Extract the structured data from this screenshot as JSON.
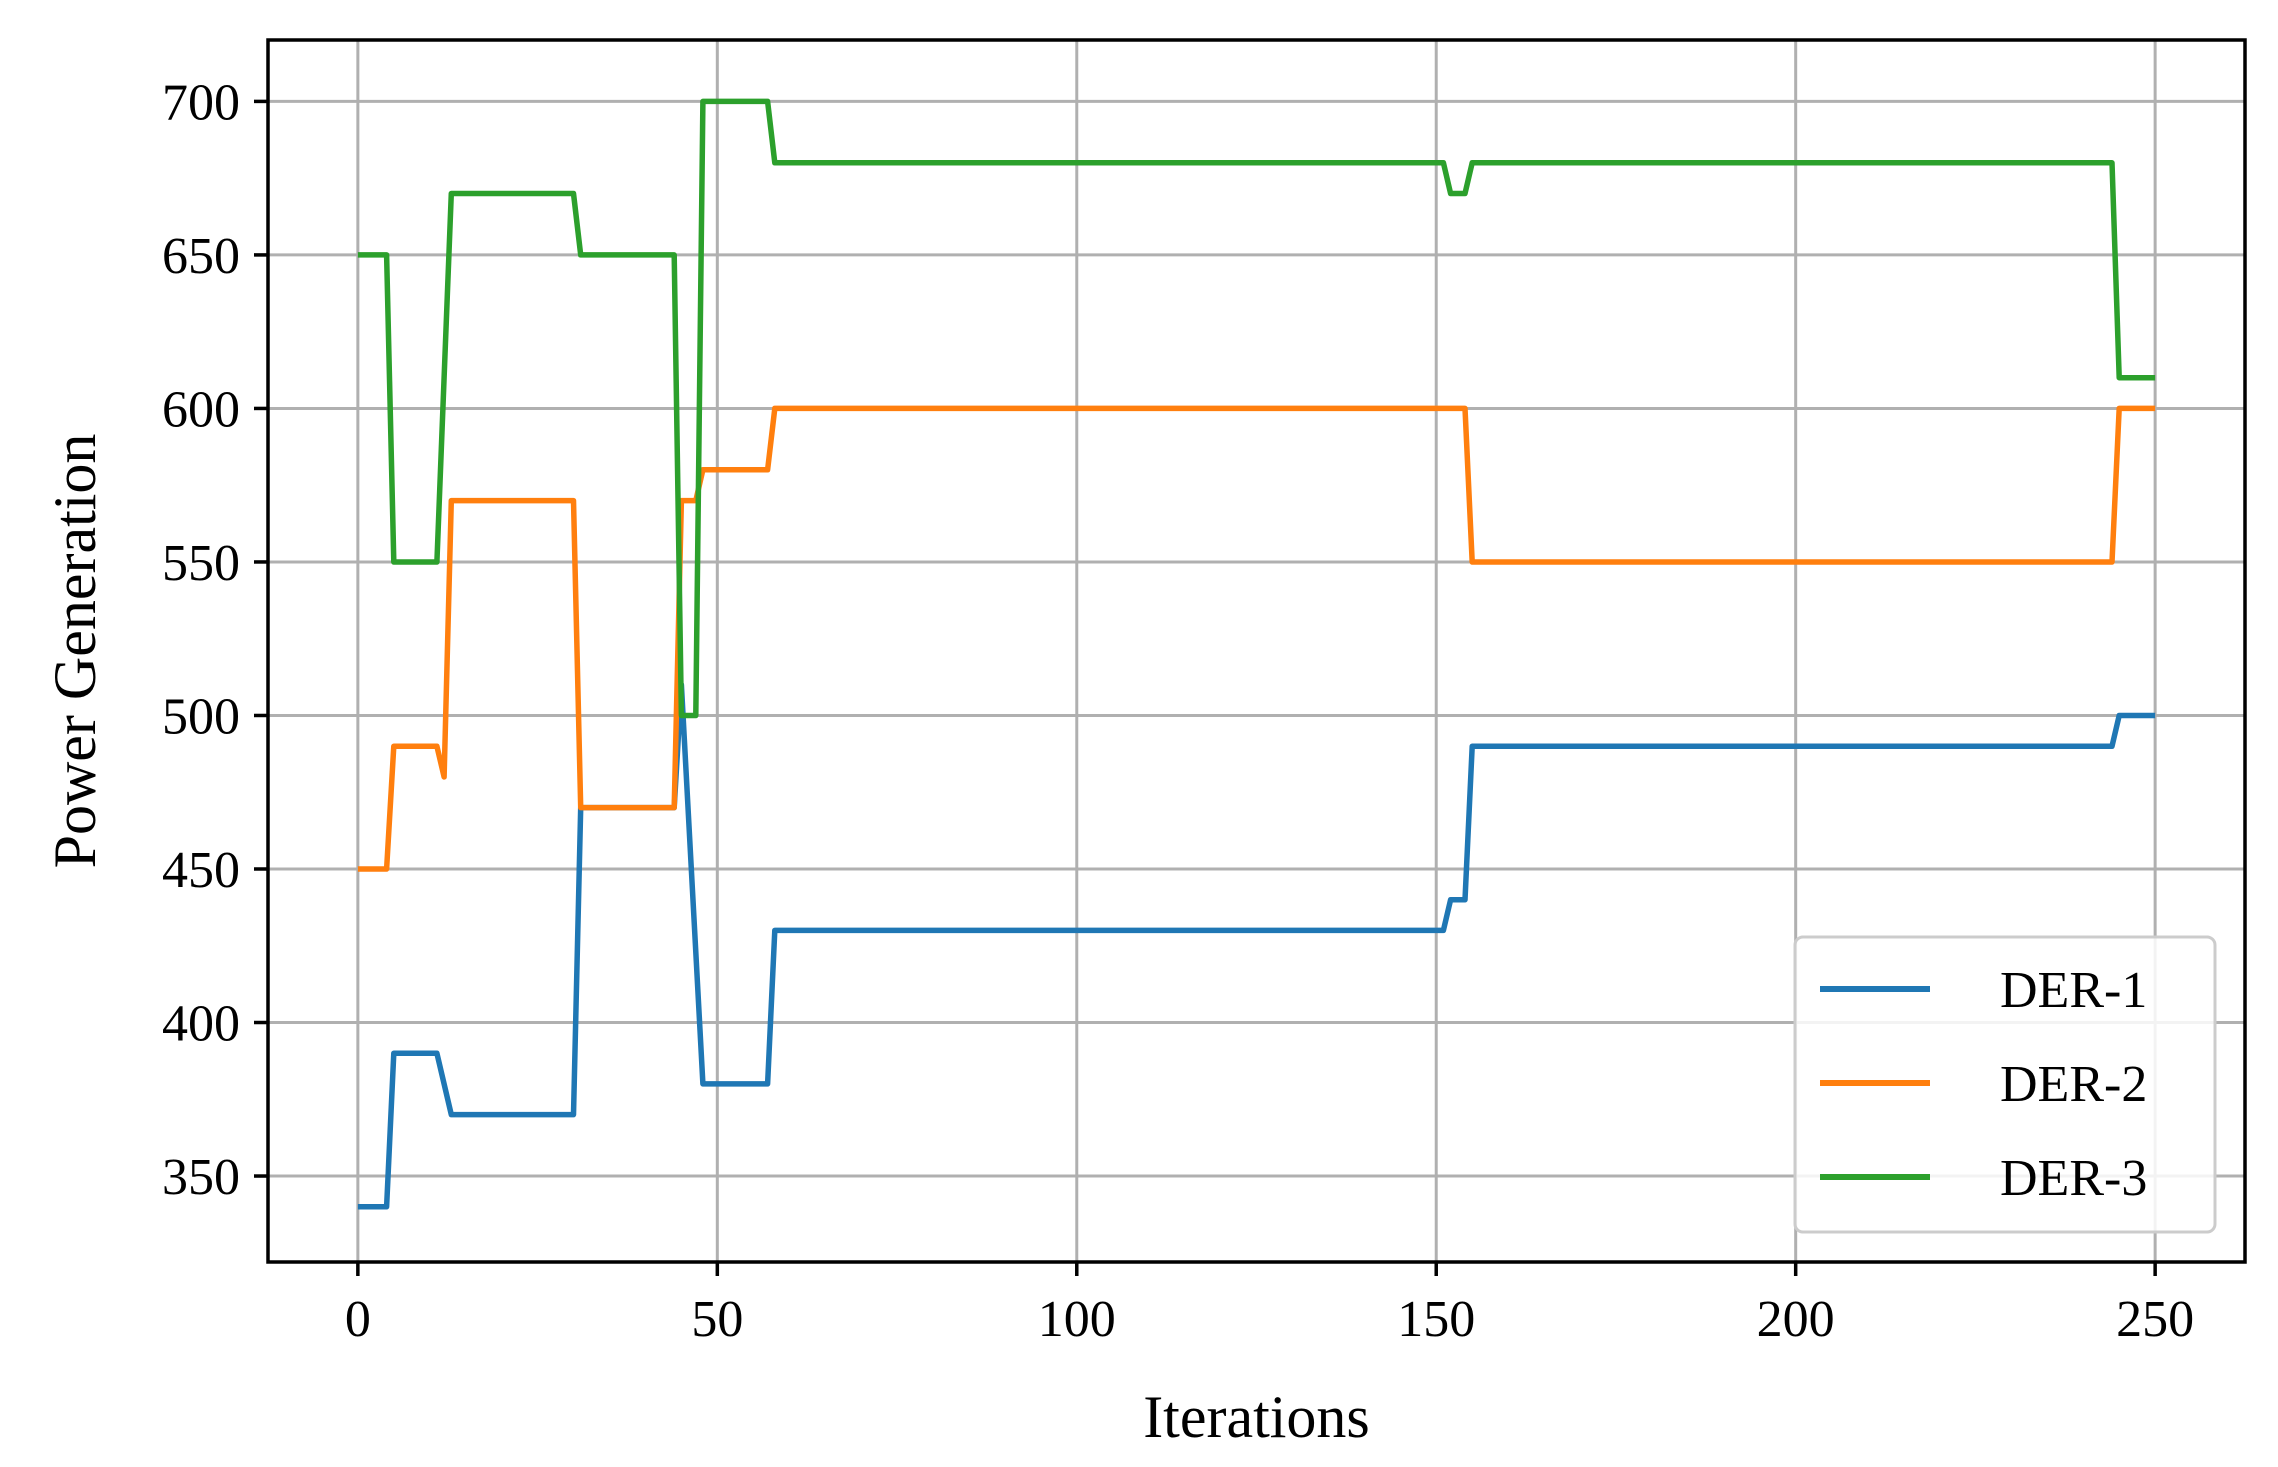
{
  "chart_data": {
    "type": "line",
    "title": "",
    "xlabel": "Iterations",
    "ylabel": "Power Generation",
    "xlim": [
      -12.5,
      262.5
    ],
    "ylim": [
      322,
      720
    ],
    "xticks": [
      0,
      50,
      100,
      150,
      200,
      250
    ],
    "yticks": [
      350,
      400,
      450,
      500,
      550,
      600,
      650,
      700
    ],
    "grid": true,
    "legend_position": "lower-right",
    "series": [
      {
        "name": "DER-1",
        "color": "#1f77b4",
        "x": [
          0,
          4,
          5,
          11,
          13,
          30,
          31,
          44,
          45,
          48,
          57,
          58,
          151,
          152,
          154,
          155,
          244,
          245,
          250
        ],
        "y": [
          340,
          340,
          390,
          390,
          370,
          370,
          470,
          470,
          510,
          380,
          380,
          430,
          430,
          440,
          440,
          490,
          490,
          500,
          500
        ]
      },
      {
        "name": "DER-2",
        "color": "#ff7f0e",
        "x": [
          0,
          4,
          5,
          11,
          12,
          13,
          30,
          31,
          44,
          45,
          47,
          48,
          57,
          58,
          154,
          155,
          244,
          245,
          250
        ],
        "y": [
          450,
          450,
          490,
          490,
          480,
          570,
          570,
          470,
          470,
          570,
          570,
          580,
          580,
          600,
          600,
          550,
          550,
          600,
          600
        ]
      },
      {
        "name": "DER-3",
        "color": "#2ca02c",
        "x": [
          0,
          4,
          5,
          11,
          13,
          30,
          31,
          44,
          45,
          47,
          48,
          57,
          58,
          151,
          152,
          154,
          155,
          244,
          245,
          250
        ],
        "y": [
          650,
          650,
          550,
          550,
          670,
          670,
          650,
          650,
          500,
          500,
          700,
          700,
          680,
          680,
          670,
          670,
          680,
          680,
          610,
          610
        ]
      }
    ]
  }
}
